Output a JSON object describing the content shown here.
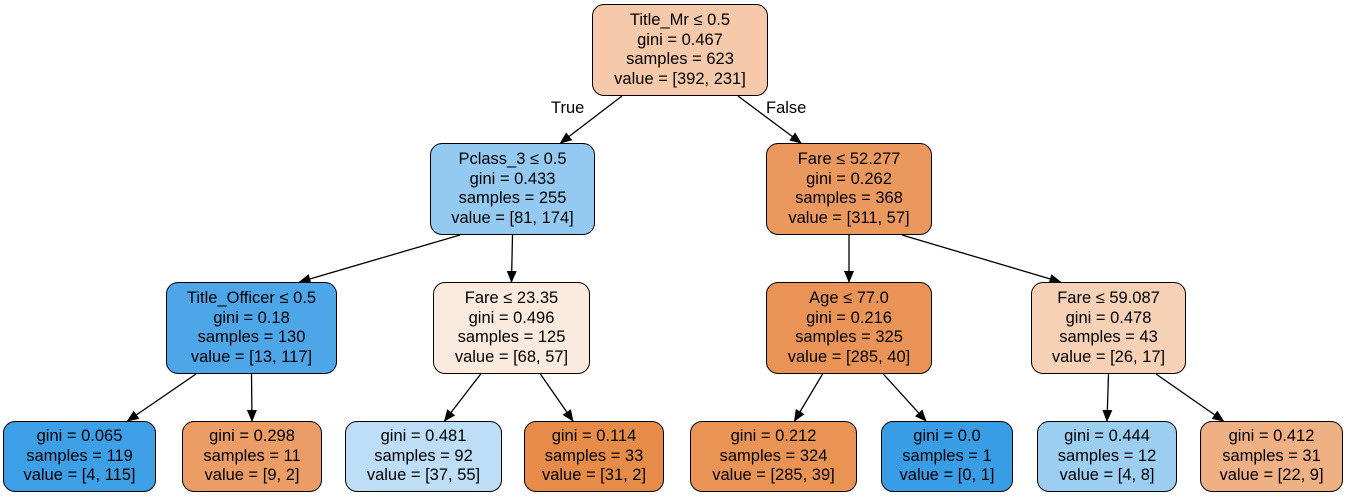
{
  "nodes": [
    {
      "id": "n0",
      "fill": "#f5c9a9",
      "lines": [
        "Title_Mr ≤ 0.5",
        "gini = 0.467",
        "samples = 623",
        "value = [392, 231]"
      ]
    },
    {
      "id": "n1",
      "fill": "#94caf2",
      "lines": [
        "Pclass_3 ≤ 0.5",
        "gini = 0.433",
        "samples = 255",
        "value = [81, 174]"
      ]
    },
    {
      "id": "n2",
      "fill": "#ea985d",
      "lines": [
        "Fare ≤ 52.277",
        "gini = 0.262",
        "samples = 368",
        "value = [311, 57]"
      ]
    },
    {
      "id": "n3",
      "fill": "#4ca6e8",
      "lines": [
        "Title_Officer ≤ 0.5",
        "gini = 0.18",
        "samples = 130",
        "value = [13, 117]"
      ]
    },
    {
      "id": "n4",
      "fill": "#fbebdf",
      "lines": [
        "Fare ≤ 23.35",
        "gini = 0.496",
        "samples = 125",
        "value = [68, 57]"
      ]
    },
    {
      "id": "n5",
      "fill": "#e99456",
      "lines": [
        "Age ≤ 77.0",
        "gini = 0.216",
        "samples = 325",
        "value = [285, 40]"
      ]
    },
    {
      "id": "n6",
      "fill": "#f6d1b6",
      "lines": [
        "Fare ≤ 59.087",
        "gini = 0.478",
        "samples = 43",
        "value = [26, 17]"
      ]
    },
    {
      "id": "n7",
      "fill": "#3d9fe6",
      "lines": [
        "gini = 0.065",
        "samples = 119",
        "value = [4, 115]"
      ]
    },
    {
      "id": "n8",
      "fill": "#eb9d65",
      "lines": [
        "gini = 0.298",
        "samples = 11",
        "value = [9, 2]"
      ]
    },
    {
      "id": "n9",
      "fill": "#bddef6",
      "lines": [
        "gini = 0.481",
        "samples = 92",
        "value = [37, 55]"
      ]
    },
    {
      "id": "n10",
      "fill": "#e78b48",
      "lines": [
        "gini = 0.114",
        "samples = 33",
        "value = [31, 2]"
      ]
    },
    {
      "id": "n11",
      "fill": "#e99355",
      "lines": [
        "gini = 0.212",
        "samples = 324",
        "value = [285, 39]"
      ]
    },
    {
      "id": "n12",
      "fill": "#399de5",
      "lines": [
        "gini = 0.0",
        "samples = 1",
        "value = [0, 1]"
      ]
    },
    {
      "id": "n13",
      "fill": "#9ccef2",
      "lines": [
        "gini = 0.444",
        "samples = 12",
        "value = [4, 8]"
      ]
    },
    {
      "id": "n14",
      "fill": "#efb083",
      "lines": [
        "gini = 0.412",
        "samples = 31",
        "value = [22, 9]"
      ]
    }
  ],
  "edges": [
    [
      "n0",
      "n1"
    ],
    [
      "n0",
      "n2"
    ],
    [
      "n1",
      "n3"
    ],
    [
      "n1",
      "n4"
    ],
    [
      "n2",
      "n5"
    ],
    [
      "n2",
      "n6"
    ],
    [
      "n3",
      "n7"
    ],
    [
      "n3",
      "n8"
    ],
    [
      "n4",
      "n9"
    ],
    [
      "n4",
      "n10"
    ],
    [
      "n5",
      "n11"
    ],
    [
      "n5",
      "n12"
    ],
    [
      "n6",
      "n13"
    ],
    [
      "n6",
      "n14"
    ]
  ],
  "edge_labels": {
    "true_label": "True",
    "false_label": "False"
  }
}
